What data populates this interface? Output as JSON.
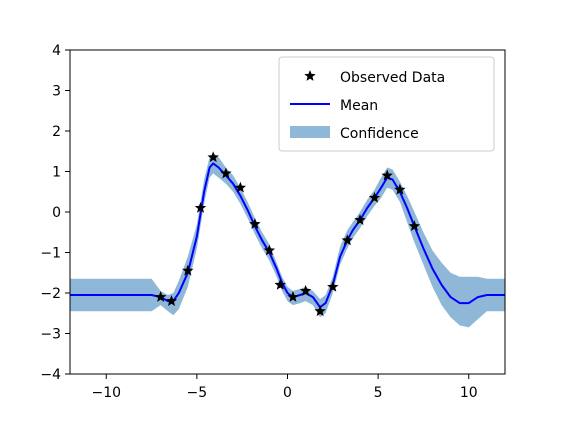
{
  "chart_data": {
    "type": "line",
    "title": "",
    "xlabel": "",
    "ylabel": "",
    "xlim": [
      -12,
      12
    ],
    "ylim": [
      -4,
      4
    ],
    "xticks": [
      -10,
      -5,
      0,
      5,
      10
    ],
    "yticks": [
      -4,
      -3,
      -2,
      -1,
      0,
      1,
      2,
      3,
      4
    ],
    "xtick_labels": [
      "−10",
      "−5",
      "0",
      "5",
      "10"
    ],
    "ytick_labels": [
      "−4",
      "−3",
      "−2",
      "−1",
      "0",
      "1",
      "2",
      "3",
      "4"
    ],
    "grid": false,
    "legend_position": "top-right",
    "legend": {
      "observed": "Observed Data",
      "mean": "Mean",
      "confidence": "Confidence"
    },
    "colors": {
      "observed": "#000000",
      "mean": "#0000ff",
      "confidence": "#8fb8d8"
    },
    "observed": {
      "name": "Observed Data",
      "x": [
        -7.0,
        -6.4,
        -5.5,
        -4.8,
        -4.1,
        -3.4,
        -2.6,
        -1.8,
        -1.0,
        -0.4,
        0.3,
        1.0,
        1.8,
        2.5,
        3.3,
        4.0,
        4.8,
        5.5,
        6.2,
        7.0
      ],
      "y": [
        -2.1,
        -2.2,
        -1.45,
        0.1,
        1.35,
        0.95,
        0.6,
        -0.3,
        -0.95,
        -1.8,
        -2.1,
        -1.95,
        -2.45,
        -1.85,
        -0.7,
        -0.2,
        0.35,
        0.9,
        0.55,
        -0.35
      ]
    },
    "mean": {
      "name": "Mean",
      "x": [
        -12,
        -7.5,
        -7.0,
        -6.6,
        -6.3,
        -6.0,
        -5.5,
        -5.0,
        -4.6,
        -4.3,
        -4.1,
        -3.8,
        -3.4,
        -3.0,
        -2.6,
        -2.2,
        -1.8,
        -1.4,
        -1.0,
        -0.6,
        -0.3,
        0.0,
        0.3,
        0.7,
        1.0,
        1.4,
        1.8,
        2.1,
        2.5,
        2.9,
        3.3,
        3.6,
        4.0,
        4.4,
        4.8,
        5.1,
        5.5,
        5.8,
        6.2,
        6.6,
        7.0,
        7.5,
        8.0,
        8.5,
        9.0,
        9.5,
        10.0,
        10.5,
        11.0,
        12
      ],
      "y": [
        -2.05,
        -2.05,
        -2.1,
        -2.2,
        -2.2,
        -2.0,
        -1.5,
        -0.6,
        0.5,
        1.1,
        1.2,
        1.1,
        0.9,
        0.7,
        0.4,
        0.05,
        -0.35,
        -0.7,
        -1.0,
        -1.4,
        -1.75,
        -2.0,
        -2.1,
        -2.05,
        -2.0,
        -2.1,
        -2.35,
        -2.25,
        -1.8,
        -1.1,
        -0.7,
        -0.45,
        -0.2,
        0.1,
        0.35,
        0.55,
        0.85,
        0.8,
        0.5,
        0.1,
        -0.35,
        -0.9,
        -1.4,
        -1.8,
        -2.1,
        -2.25,
        -2.25,
        -2.1,
        -2.05,
        -2.05
      ]
    },
    "confidence": {
      "name": "Confidence",
      "x": [
        -12,
        -7.5,
        -7.0,
        -6.6,
        -6.3,
        -6.0,
        -5.5,
        -5.0,
        -4.6,
        -4.3,
        -4.1,
        -3.8,
        -3.4,
        -3.0,
        -2.6,
        -2.2,
        -1.8,
        -1.4,
        -1.0,
        -0.6,
        -0.3,
        0.0,
        0.3,
        0.7,
        1.0,
        1.4,
        1.8,
        2.1,
        2.5,
        2.9,
        3.3,
        3.6,
        4.0,
        4.4,
        4.8,
        5.1,
        5.5,
        5.8,
        6.2,
        6.6,
        7.0,
        7.5,
        8.0,
        8.5,
        9.0,
        9.5,
        10.0,
        10.5,
        11.0,
        12
      ],
      "upper": [
        -1.65,
        -1.65,
        -1.95,
        -2.05,
        -2.0,
        -1.7,
        -1.1,
        -0.3,
        0.8,
        1.35,
        1.45,
        1.35,
        1.1,
        0.9,
        0.6,
        0.25,
        -0.15,
        -0.5,
        -0.8,
        -1.25,
        -1.6,
        -1.85,
        -1.95,
        -1.9,
        -1.85,
        -1.95,
        -2.15,
        -2.05,
        -1.6,
        -0.85,
        -0.45,
        -0.25,
        0.0,
        0.3,
        0.55,
        0.8,
        1.1,
        1.05,
        0.75,
        0.4,
        0.0,
        -0.5,
        -0.95,
        -1.25,
        -1.5,
        -1.6,
        -1.6,
        -1.6,
        -1.65,
        -1.65
      ],
      "lower": [
        -2.45,
        -2.45,
        -2.3,
        -2.45,
        -2.55,
        -2.4,
        -1.85,
        -0.9,
        0.2,
        0.85,
        0.95,
        0.85,
        0.7,
        0.5,
        0.2,
        -0.15,
        -0.55,
        -0.9,
        -1.2,
        -1.6,
        -1.95,
        -2.2,
        -2.3,
        -2.25,
        -2.2,
        -2.3,
        -2.6,
        -2.5,
        -2.0,
        -1.3,
        -0.9,
        -0.65,
        -0.4,
        -0.1,
        0.15,
        0.3,
        0.6,
        0.55,
        0.25,
        -0.25,
        -0.75,
        -1.3,
        -1.85,
        -2.3,
        -2.6,
        -2.8,
        -2.85,
        -2.65,
        -2.45,
        -2.45
      ]
    }
  }
}
